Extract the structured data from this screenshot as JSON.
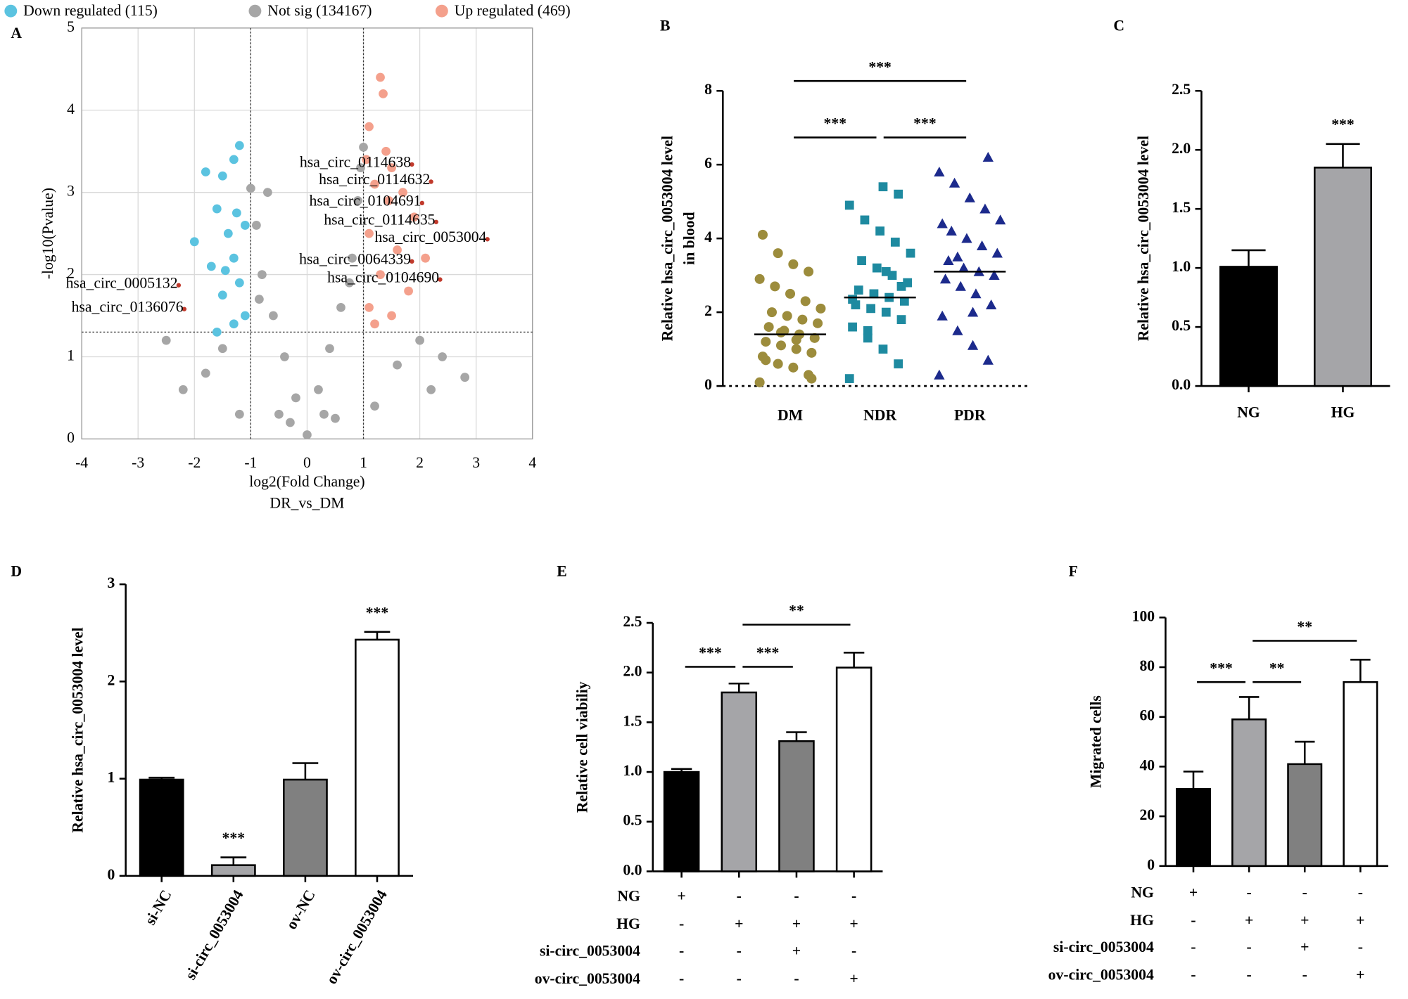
{
  "chart_data": [
    {
      "type": "scatter",
      "panel": "A",
      "xlabel": "log2(Fold Change)",
      "subtitle": "DR_vs_DM",
      "ylabel": "-log10(Pvalue)",
      "xlim": [
        -4,
        4
      ],
      "xticks": [
        -4,
        -3,
        -2,
        -1,
        0,
        1,
        2,
        3,
        4
      ],
      "ylim": [
        0,
        5
      ],
      "yticks": [
        0,
        1,
        2,
        3,
        4,
        5
      ],
      "grid": true,
      "thresholds": {
        "x": [
          -1,
          1
        ],
        "y": 1.3
      },
      "series": [
        {
          "name": "Down regulated (115)",
          "color": "#5bc3e0",
          "x": [
            -1.2,
            -1.3,
            -1.5,
            -1.8,
            -1.6,
            -1.1,
            -1.4,
            -1.3,
            -1.7,
            -1.2,
            -1.5,
            -1.1,
            -1.3,
            -1.6,
            -2.0,
            -1.25,
            -1.45
          ],
          "y": [
            3.57,
            3.4,
            3.2,
            3.25,
            2.8,
            2.6,
            2.5,
            2.2,
            2.1,
            1.9,
            1.75,
            1.5,
            1.4,
            1.3,
            2.4,
            2.75,
            2.05
          ]
        },
        {
          "name": "Not sig (134167)",
          "color": "#a6a6a6",
          "x": [
            0,
            -0.2,
            0.2,
            -0.4,
            0.4,
            -0.6,
            0.6,
            -0.8,
            0.8,
            -0.9,
            0.9,
            -0.7,
            0.95,
            -1.5,
            -2.2,
            -2.5,
            1.6,
            2.2,
            2.8,
            2.4,
            -1.2,
            1.2,
            -0.5,
            0.5,
            -1.8,
            2.0,
            -0.3,
            0.3,
            -0.85,
            0.75,
            -1.0,
            1.0
          ],
          "y": [
            0.05,
            0.5,
            0.6,
            1.0,
            1.1,
            1.5,
            1.6,
            2.0,
            2.2,
            2.6,
            2.9,
            3.0,
            3.3,
            1.1,
            0.6,
            1.2,
            0.9,
            0.6,
            0.75,
            1.0,
            0.3,
            0.4,
            0.3,
            0.25,
            0.8,
            1.2,
            0.2,
            0.3,
            1.7,
            1.9,
            3.05,
            3.55
          ]
        },
        {
          "name": "Up regulated (469)",
          "color": "#f4a08c",
          "x": [
            1.3,
            1.35,
            1.4,
            1.1,
            1.5,
            1.2,
            1.7,
            1.9,
            1.1,
            1.6,
            1.3,
            1.8,
            1.1,
            1.5,
            2.1,
            1.2,
            1.05,
            1.45
          ],
          "y": [
            4.4,
            4.2,
            3.5,
            3.8,
            3.3,
            3.1,
            3.0,
            2.7,
            2.5,
            2.3,
            2.0,
            1.8,
            1.6,
            1.5,
            2.2,
            1.4,
            3.4,
            2.9
          ]
        }
      ],
      "annotations": [
        {
          "text": "hsa_circ_0114638",
          "x": 1.86,
          "y": 3.34
        },
        {
          "text": "hsa_circ_0114632",
          "x": 2.2,
          "y": 3.13
        },
        {
          "text": "hsa_circ_0104691",
          "x": 2.04,
          "y": 2.87
        },
        {
          "text": "hsa_circ_0114635",
          "x": 2.29,
          "y": 2.64
        },
        {
          "text": "hsa_circ_0053004",
          "x": 3.2,
          "y": 2.43
        },
        {
          "text": "hsa_circ_0064339",
          "x": 1.86,
          "y": 2.16
        },
        {
          "text": "hsa_circ_0104690",
          "x": 2.36,
          "y": 1.94
        },
        {
          "text": "hsa_circ_0005132",
          "x": -2.28,
          "y": 1.87
        },
        {
          "text": "hsa_circ_0136076",
          "x": -2.18,
          "y": 1.58
        }
      ]
    },
    {
      "type": "strip",
      "panel": "B",
      "ylabel": [
        "Relative hsa_circ_0053004 level",
        "in blood"
      ],
      "ylim": [
        0,
        8
      ],
      "yticks": [
        0,
        2,
        4,
        6,
        8
      ],
      "categories": [
        "DM",
        "NDR",
        "PDR"
      ],
      "colors": [
        "#9c8c3c",
        "#1e8aa0",
        "#1c2a8c"
      ],
      "markers": [
        "circle",
        "square",
        "triangle"
      ],
      "means": [
        1.4,
        2.4,
        3.1
      ],
      "points": [
        [
          0.1,
          0.3,
          0.5,
          0.6,
          0.8,
          0.9,
          1.0,
          1.1,
          1.2,
          1.3,
          1.4,
          1.5,
          1.6,
          1.7,
          1.8,
          1.9,
          2.0,
          2.1,
          2.3,
          2.5,
          2.7,
          2.9,
          3.1,
          3.3,
          3.6,
          4.1,
          0.2,
          1.25,
          1.45,
          0.7
        ],
        [
          0.2,
          0.6,
          1.0,
          1.3,
          1.6,
          1.8,
          2.0,
          2.1,
          2.2,
          2.3,
          2.4,
          2.5,
          2.6,
          2.8,
          3.0,
          3.2,
          3.4,
          3.6,
          3.9,
          4.2,
          4.5,
          4.9,
          5.2,
          5.4,
          1.5,
          2.35,
          2.7,
          3.1
        ],
        [
          0.3,
          0.7,
          1.1,
          1.5,
          1.9,
          2.2,
          2.5,
          2.7,
          2.9,
          3.0,
          3.1,
          3.2,
          3.4,
          3.6,
          3.8,
          4.0,
          4.2,
          4.5,
          4.8,
          5.1,
          5.5,
          5.8,
          6.2,
          2.0,
          3.5,
          4.4
        ]
      ],
      "brackets": [
        {
          "between": [
            0,
            2
          ],
          "text": "***"
        },
        {
          "between": [
            0,
            1
          ],
          "text": "***"
        },
        {
          "between": [
            1,
            2
          ],
          "text": "***"
        }
      ]
    },
    {
      "type": "bar",
      "panel": "C",
      "ylabel": "Relative hsa_circ_0053004 level",
      "ylim": [
        0,
        2.5
      ],
      "yticks": [
        {
          "value": 0,
          "label": "0.0"
        },
        {
          "value": 0.5,
          "label": "0.5"
        },
        {
          "value": 1,
          "label": "1.0"
        },
        {
          "value": 1.5,
          "label": "1.5"
        },
        {
          "value": 2,
          "label": "2.0"
        },
        {
          "value": 2.5,
          "label": "2.5"
        }
      ],
      "categories": [
        "NG",
        "HG"
      ],
      "values": [
        1.01,
        1.85
      ],
      "errors": [
        0.14,
        0.2
      ],
      "colors": [
        "#000000",
        "#a5a5a8"
      ],
      "annotations": [
        {
          "index": 1,
          "text": "***"
        }
      ]
    },
    {
      "type": "bar",
      "panel": "D",
      "ylabel": "Relative hsa_circ_0053004 level",
      "ylim": [
        0,
        3
      ],
      "yticks": [
        0,
        1,
        2,
        3
      ],
      "categories": [
        "si-NC",
        "si-circ_0053004",
        "ov-NC",
        "ov-circ_0053004"
      ],
      "rotate_labels": true,
      "values": [
        0.99,
        0.11,
        0.99,
        2.43
      ],
      "errors": [
        0.02,
        0.08,
        0.17,
        0.08
      ],
      "colors": [
        "#000000",
        "#a5a5a8",
        "#808080",
        "#ffffff"
      ],
      "annotations": [
        {
          "index": 1,
          "text": "***"
        },
        {
          "index": 3,
          "text": "***"
        }
      ]
    },
    {
      "type": "bar",
      "panel": "E",
      "ylabel": "Relative cell viabiliy",
      "ylim": [
        0,
        2.5
      ],
      "yticks": [
        {
          "value": 0,
          "label": "0.0"
        },
        {
          "value": 0.5,
          "label": "0.5"
        },
        {
          "value": 1,
          "label": "1.0"
        },
        {
          "value": 1.5,
          "label": "1.5"
        },
        {
          "value": 2,
          "label": "2.0"
        },
        {
          "value": 2.5,
          "label": "2.5"
        }
      ],
      "values": [
        1.0,
        1.8,
        1.31,
        2.05
      ],
      "errors": [
        0.03,
        0.09,
        0.09,
        0.15
      ],
      "colors": [
        "#000000",
        "#a5a5a8",
        "#808080",
        "#ffffff"
      ],
      "brackets": [
        {
          "between": [
            0,
            1
          ],
          "text": "***"
        },
        {
          "between": [
            1,
            2
          ],
          "text": "***"
        },
        {
          "between": [
            1,
            3
          ],
          "text": "**"
        }
      ],
      "conditions": [
        {
          "name": "NG",
          "signs": [
            "+",
            "-",
            "-",
            "-"
          ]
        },
        {
          "name": "HG",
          "signs": [
            "-",
            "+",
            "+",
            "+"
          ]
        },
        {
          "name": "si-circ_0053004",
          "signs": [
            "-",
            "-",
            "+",
            "-"
          ]
        },
        {
          "name": "ov-circ_0053004",
          "signs": [
            "-",
            "-",
            "-",
            "+"
          ]
        }
      ]
    },
    {
      "type": "bar",
      "panel": "F",
      "ylabel": "Migrated cells",
      "ylim": [
        0,
        100
      ],
      "yticks": [
        0,
        20,
        40,
        60,
        80,
        100
      ],
      "values": [
        31,
        59,
        41,
        74
      ],
      "errors": [
        7,
        9,
        9,
        9
      ],
      "colors": [
        "#000000",
        "#a5a5a8",
        "#808080",
        "#ffffff"
      ],
      "brackets": [
        {
          "between": [
            0,
            1
          ],
          "text": "***"
        },
        {
          "between": [
            1,
            2
          ],
          "text": "**"
        },
        {
          "between": [
            1,
            3
          ],
          "text": "**"
        }
      ],
      "conditions": [
        {
          "name": "NG",
          "signs": [
            "+",
            "-",
            "-",
            "-"
          ]
        },
        {
          "name": "HG",
          "signs": [
            "-",
            "+",
            "+",
            "+"
          ]
        },
        {
          "name": "si-circ_0053004",
          "signs": [
            "-",
            "-",
            "+",
            "-"
          ]
        },
        {
          "name": "ov-circ_0053004",
          "signs": [
            "-",
            "-",
            "-",
            "+"
          ]
        }
      ]
    }
  ]
}
